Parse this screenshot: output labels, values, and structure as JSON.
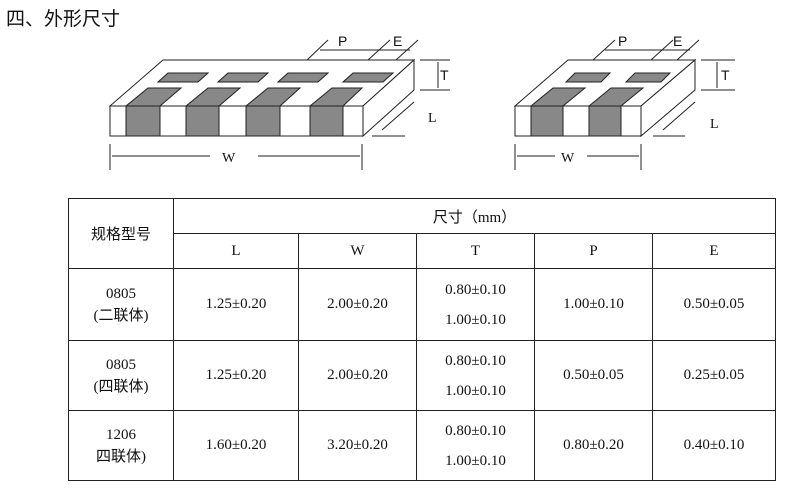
{
  "section_title": "四、外形尺寸",
  "figures": [
    {
      "labels": {
        "P": "P",
        "E": "E",
        "T": "T",
        "L": "L",
        "W": "W"
      },
      "terminals": 4
    },
    {
      "labels": {
        "P": "P",
        "E": "E",
        "T": "T",
        "L": "L",
        "W": "W"
      },
      "terminals": 2
    }
  ],
  "table": {
    "model_header": "规格型号",
    "dim_header": "尺寸（mm）",
    "columns": [
      "L",
      "W",
      "T",
      "P",
      "E"
    ],
    "rows": [
      {
        "model": "0805",
        "variant": "(二联体)",
        "L": "1.25±0.20",
        "W": "2.00±0.20",
        "T": [
          "0.80±0.10",
          "1.00±0.10"
        ],
        "P": "1.00±0.10",
        "E": "0.50±0.05"
      },
      {
        "model": "0805",
        "variant": "(四联体)",
        "L": "1.25±0.20",
        "W": "2.00±0.20",
        "T": [
          "0.80±0.10",
          "1.00±0.10"
        ],
        "P": "0.50±0.05",
        "E": "0.25±0.05"
      },
      {
        "model": "1206",
        "variant": "四联体)",
        "L": "1.60±0.20",
        "W": "3.20±0.20",
        "T": [
          "0.80±0.10",
          "1.00±0.10"
        ],
        "P": "0.80±0.20",
        "E": "0.40±0.10"
      }
    ]
  }
}
